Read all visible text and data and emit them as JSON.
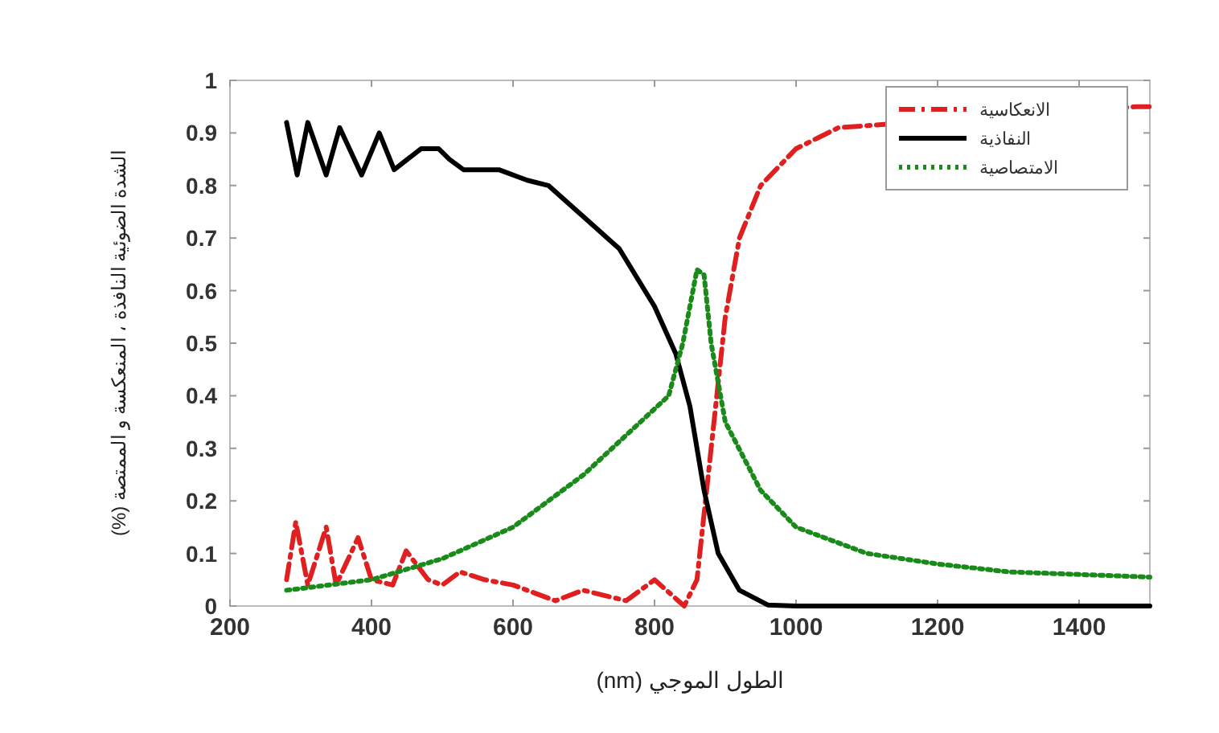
{
  "chart_data": {
    "type": "line",
    "xlabel": "الطول الموجي (nm)",
    "ylabel": "الشدة الضوئية النافذة ، المنعكسة و الممتصة (%)",
    "xlim": [
      200,
      1500
    ],
    "xticks": [
      200,
      400,
      600,
      800,
      1000,
      1200,
      1400
    ],
    "ylim": [
      0,
      1
    ],
    "yticks": [
      0,
      0.1,
      0.2,
      0.3,
      0.4,
      0.5,
      0.6,
      0.7,
      0.8,
      0.9,
      1
    ],
    "grid": false,
    "legend": "top right",
    "marker": "none",
    "series": [
      {
        "name": "الانعكاسية",
        "color": "#e02020",
        "line_style": "dashed",
        "x": [
          280,
          293,
          310,
          336,
          350,
          381,
          400,
          430,
          449,
          480,
          500,
          525,
          560,
          600,
          660,
          699,
          760,
          800,
          842,
          860,
          880,
          900,
          920,
          950,
          1000,
          1060,
          1480,
          1500
        ],
        "values": [
          0.05,
          0.16,
          0.04,
          0.15,
          0.04,
          0.13,
          0.05,
          0.04,
          0.105,
          0.05,
          0.04,
          0.065,
          0.05,
          0.04,
          0.01,
          0.03,
          0.01,
          0.05,
          0.0,
          0.05,
          0.3,
          0.55,
          0.7,
          0.8,
          0.87,
          0.91,
          0.95,
          0.95
        ]
      },
      {
        "name": "النفاذية",
        "color": "#000000",
        "line_style": "solid",
        "x": [
          280,
          295,
          310,
          336,
          355,
          386,
          411,
          432,
          470,
          495,
          510,
          530,
          580,
          620,
          650,
          700,
          750,
          800,
          830,
          850,
          870,
          890,
          920,
          960,
          1000,
          1500
        ],
        "values": [
          0.92,
          0.82,
          0.92,
          0.82,
          0.91,
          0.82,
          0.9,
          0.83,
          0.87,
          0.87,
          0.85,
          0.83,
          0.83,
          0.81,
          0.8,
          0.74,
          0.68,
          0.57,
          0.48,
          0.38,
          0.22,
          0.1,
          0.03,
          0.002,
          0,
          0
        ]
      },
      {
        "name": "الامتصاصية",
        "color": "#1a8a1a",
        "line_style": "dotted",
        "x": [
          280,
          400,
          500,
          600,
          700,
          780,
          820,
          840,
          860,
          870,
          880,
          900,
          950,
          1000,
          1100,
          1200,
          1300,
          1400,
          1500
        ],
        "values": [
          0.03,
          0.05,
          0.09,
          0.15,
          0.25,
          0.35,
          0.4,
          0.5,
          0.64,
          0.63,
          0.5,
          0.35,
          0.22,
          0.15,
          0.1,
          0.08,
          0.065,
          0.06,
          0.055
        ]
      }
    ]
  }
}
